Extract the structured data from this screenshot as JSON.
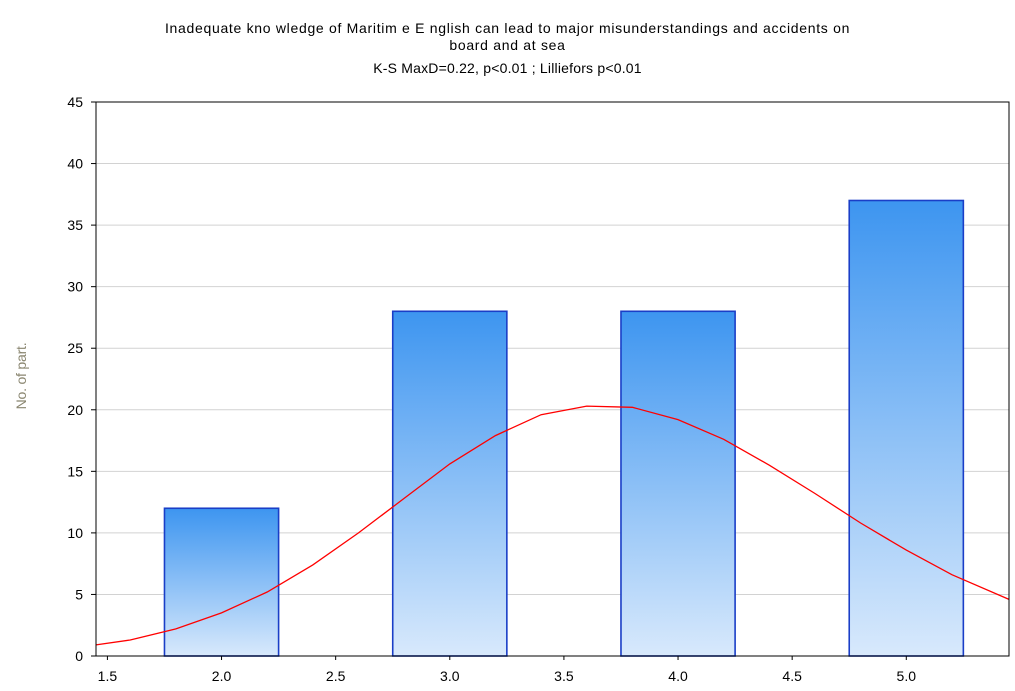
{
  "chart_data": {
    "type": "bar",
    "title": "Inadequate knowledge of Maritime English can lead to major misunderstandings and accidents on board and at sea",
    "title_lines": [
      "Inadequate kno wledge of Maritim e E nglish can lead to major misunderstandings and accidents on",
      "board and at sea"
    ],
    "subtitle": "K-S MaxD=0.22, p<0.01 ; Lilliefors p<0.01",
    "xlabel": "",
    "ylabel": "No. of part.",
    "categories": [
      "2.0",
      "3.0",
      "4.0",
      "5.0"
    ],
    "bar_centers": [
      2.0,
      3.0,
      4.0,
      5.0
    ],
    "bar_width": 0.5,
    "values": [
      12,
      28,
      28,
      37
    ],
    "xlim": [
      1.45,
      5.45
    ],
    "ylim": [
      0,
      45
    ],
    "yticks": [
      0,
      5,
      10,
      15,
      20,
      25,
      30,
      35,
      40,
      45
    ],
    "xtick_labels": [
      {
        "value": 1.5,
        "label": "1.5"
      },
      {
        "value": 2.0,
        "label": "2.0"
      },
      {
        "value": 2.5,
        "label": "2.5"
      },
      {
        "value": 3.0,
        "label": "3.0"
      },
      {
        "value": 3.5,
        "label": "3.5"
      },
      {
        "value": 4.0,
        "label": "4.0"
      },
      {
        "value": 4.5,
        "label": "4.5"
      },
      {
        "value": 5.0,
        "label": "5.0"
      }
    ],
    "grid": true,
    "fit_curve": {
      "type": "normal",
      "color": "#ff0000",
      "points": [
        [
          1.45,
          0.9
        ],
        [
          1.6,
          1.3
        ],
        [
          1.8,
          2.2
        ],
        [
          2.0,
          3.5
        ],
        [
          2.2,
          5.2
        ],
        [
          2.4,
          7.4
        ],
        [
          2.6,
          10.0
        ],
        [
          2.8,
          12.8
        ],
        [
          3.0,
          15.6
        ],
        [
          3.2,
          17.9
        ],
        [
          3.4,
          19.6
        ],
        [
          3.6,
          20.3
        ],
        [
          3.8,
          20.2
        ],
        [
          4.0,
          19.2
        ],
        [
          4.2,
          17.6
        ],
        [
          4.4,
          15.5
        ],
        [
          4.6,
          13.2
        ],
        [
          4.8,
          10.8
        ],
        [
          5.0,
          8.6
        ],
        [
          5.2,
          6.6
        ],
        [
          5.45,
          4.6
        ]
      ]
    },
    "colors": {
      "bar_top": "#3d95f0",
      "bar_bottom": "#d8e9fc",
      "bar_stroke": "#1a3ec7",
      "grid": "#d2d2d2",
      "frame": "#000000",
      "curve": "#ff0000",
      "ylabel": "#8a8670"
    }
  }
}
